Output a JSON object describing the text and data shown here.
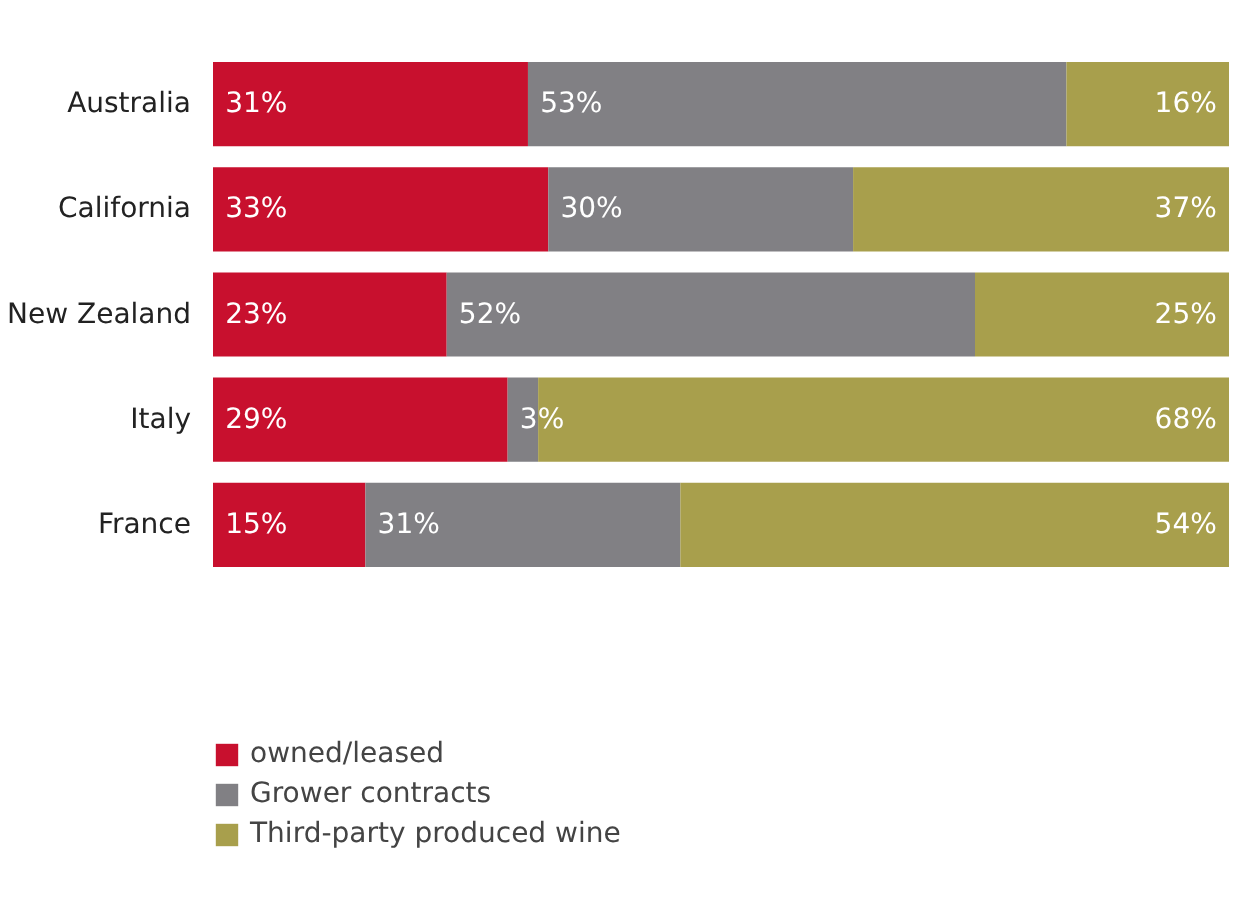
{
  "chart_data": {
    "type": "bar",
    "orientation": "horizontal",
    "stacked": true,
    "legend": "bottom",
    "categories": [
      "Australia",
      "California",
      "New Zealand",
      "Italy",
      "France"
    ],
    "series": [
      {
        "name": "owned/leased",
        "color": "#c8102e",
        "values": [
          31,
          33,
          23,
          29,
          15
        ],
        "value_labels": [
          "31%",
          "33%",
          "23%",
          "29%",
          "15%"
        ]
      },
      {
        "name": "Grower contracts",
        "color": "#818084",
        "values": [
          53,
          30,
          52,
          3,
          31
        ],
        "value_labels": [
          "53%",
          "30%",
          "52%",
          "3%",
          "31%"
        ]
      },
      {
        "name": "Third-party produced wine",
        "color": "#a89f4c",
        "values": [
          16,
          37,
          25,
          68,
          54
        ],
        "value_labels": [
          "16%",
          "37%",
          "25%",
          "68%",
          "54%"
        ]
      }
    ]
  }
}
